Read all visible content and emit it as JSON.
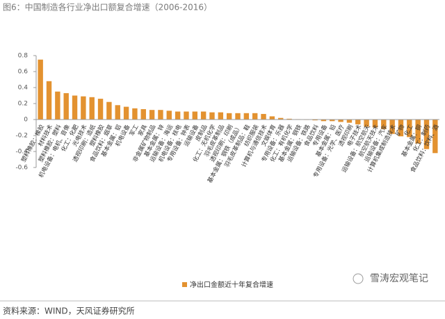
{
  "chart_data": {
    "type": "bar",
    "title": "图6：中国制造各行业净出口额复合增速（2006-2016）",
    "categories": [
      "塑料橡胶：橡胶",
      "材料技术",
      "塑料橡胶：塑料",
      "机电设备：电机、音像",
      "化工：化肥",
      "光电技术",
      "透视印刷：造纸",
      "塑料橡胶",
      "食品饮料：烟草",
      "基本金属：铝",
      "机电设备",
      "军工",
      "家具",
      "非金属矿物制品",
      "基本金属：锌",
      "运输设备：海运",
      "机电设备：核电",
      "专用设备：钟表",
      "运输设备",
      "皮制品",
      "化工：无机化学",
      "羽毛皮革制品",
      "透视印刷：印刷",
      "基本金属：钢铁（成品）",
      "羽毛皮革制品：鞋",
      "纺织服装",
      "计算机与通信技术",
      "文娱体育",
      "专用设备：乐器",
      "化工：有机化学",
      "基本金属：钢铁",
      "运输设备：铁路",
      "食品饮料",
      "专用设备",
      "基本金属：铅",
      "专用设备：光学、医疗",
      "透视印刷",
      "电子技术",
      "运输设备：航空航天",
      "航空航天技术",
      "运输设备：汽车",
      "计算机集成制造技术",
      "矿物",
      "化工",
      "基本金属：铜",
      "化工：制药",
      "食品饮料：饮料、酒"
    ],
    "series": [
      {
        "name": "净出口金额近十年复合增速",
        "color": "#e39230",
        "values": [
          0.75,
          0.48,
          0.35,
          0.33,
          0.3,
          0.29,
          0.28,
          0.26,
          0.22,
          0.18,
          0.16,
          0.14,
          0.13,
          0.12,
          0.12,
          0.11,
          0.1,
          0.1,
          0.1,
          0.1,
          0.09,
          0.09,
          0.08,
          0.08,
          0.08,
          0.08,
          0.07,
          0.04,
          0.02,
          0.01,
          0.005,
          -0.005,
          -0.01,
          -0.02,
          -0.02,
          -0.03,
          -0.04,
          -0.06,
          -0.09,
          -0.1,
          -0.12,
          -0.18,
          -0.21,
          -0.22,
          -0.3,
          -0.37,
          -0.42
        ]
      }
    ],
    "ylim": [
      -0.6,
      0.8
    ],
    "yticks": [
      -0.6,
      -0.4,
      -0.2,
      0,
      0.2,
      0.4,
      0.6,
      0.8
    ],
    "legend": "bottom",
    "source": "资料来源：WIND，天风证券研究所",
    "watermark": "雪涛宏观笔记"
  }
}
